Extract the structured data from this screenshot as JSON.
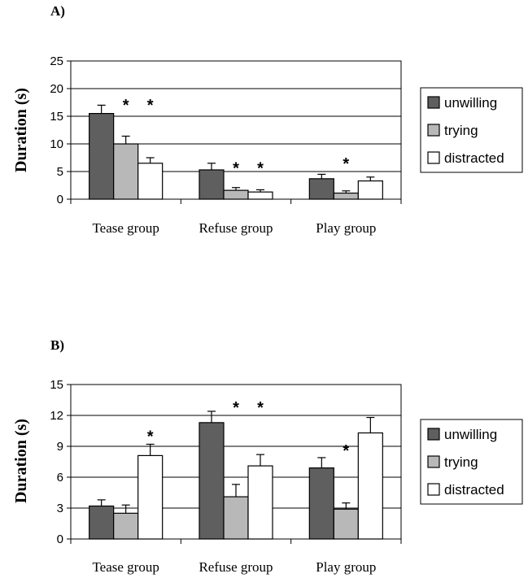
{
  "colors": {
    "unwilling": "#5f5f5f",
    "trying": "#b8b8b8",
    "distracted": "#ffffff",
    "grid": "#000000",
    "bar_border": "#000000"
  },
  "chart_data": [
    {
      "panel_label": "A)",
      "type": "bar",
      "ylabel": "Duration (s)",
      "xlabel": "",
      "ylim": [
        0,
        25
      ],
      "yticks": [
        0,
        5,
        10,
        15,
        20,
        25
      ],
      "grid": true,
      "legend_position": "right",
      "categories": [
        "Tease group",
        "Refuse group",
        "Play group"
      ],
      "series": [
        {
          "name": "unwilling",
          "values": [
            15.5,
            5.3,
            3.7
          ],
          "errors": [
            1.5,
            1.2,
            0.8
          ]
        },
        {
          "name": "trying",
          "values": [
            10.0,
            1.6,
            1.1
          ],
          "errors": [
            1.4,
            0.5,
            0.4
          ]
        },
        {
          "name": "distracted",
          "values": [
            6.5,
            1.3,
            3.3
          ],
          "errors": [
            1.0,
            0.4,
            0.7
          ]
        }
      ],
      "annotations": [
        {
          "text": "*",
          "category": 0,
          "series": 1,
          "y": 17.8
        },
        {
          "text": "*",
          "category": 0,
          "series": 2,
          "y": 17.8
        },
        {
          "text": "*",
          "category": 1,
          "series": 1,
          "y": 6.4
        },
        {
          "text": "*",
          "category": 1,
          "series": 2,
          "y": 6.4
        },
        {
          "text": "*",
          "category": 2,
          "series": 1,
          "y": 7.2
        }
      ]
    },
    {
      "panel_label": "B)",
      "type": "bar",
      "ylabel": "Duration (s)",
      "xlabel": "",
      "ylim": [
        0,
        15
      ],
      "yticks": [
        0,
        3,
        6,
        9,
        12,
        15
      ],
      "grid": true,
      "legend_position": "right",
      "categories": [
        "Tease group",
        "Refuse group",
        "Play group"
      ],
      "series": [
        {
          "name": "unwilling",
          "values": [
            3.2,
            11.3,
            6.9
          ],
          "errors": [
            0.6,
            1.1,
            1.0
          ]
        },
        {
          "name": "trying",
          "values": [
            2.5,
            4.1,
            2.9
          ],
          "errors": [
            0.8,
            1.2,
            0.6
          ]
        },
        {
          "name": "distracted",
          "values": [
            8.1,
            7.1,
            10.3
          ],
          "errors": [
            1.1,
            1.1,
            1.5
          ]
        }
      ],
      "annotations": [
        {
          "text": "*",
          "category": 0,
          "series": 2,
          "y": 10.4
        },
        {
          "text": "*",
          "category": 1,
          "series": 1,
          "y": 13.2
        },
        {
          "text": "*",
          "category": 1,
          "series": 2,
          "y": 13.2
        },
        {
          "text": "*",
          "category": 2,
          "series": 1,
          "y": 9.0
        }
      ]
    }
  ]
}
